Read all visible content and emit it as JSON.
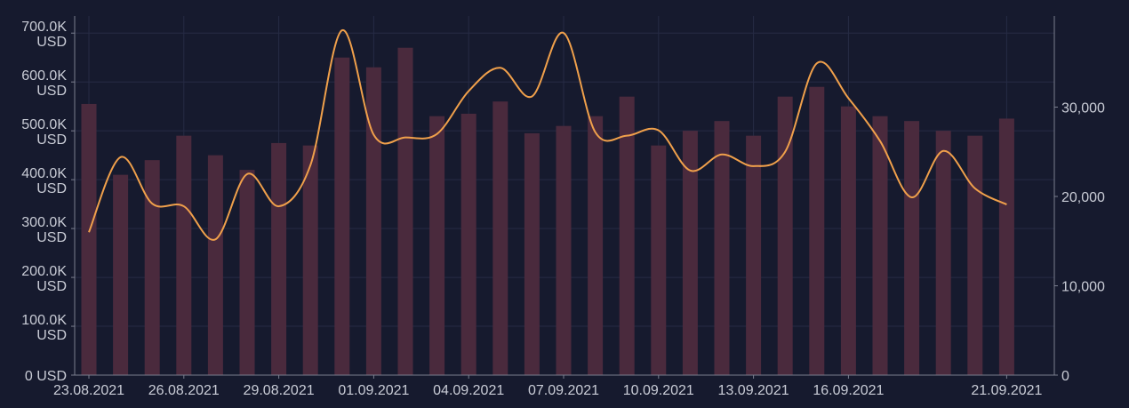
{
  "chart_data": {
    "type": "bar",
    "colors": {
      "background": "#161a2e",
      "bars": "#4a2a3d",
      "line": "#f0a04b",
      "grid": "#262b44",
      "text": "#c9ccd6"
    },
    "grid": true,
    "categories": [
      "23.08.2021",
      "24.08.2021",
      "25.08.2021",
      "26.08.2021",
      "27.08.2021",
      "28.08.2021",
      "29.08.2021",
      "30.08.2021",
      "31.08.2021",
      "01.09.2021",
      "02.09.2021",
      "03.09.2021",
      "04.09.2021",
      "05.09.2021",
      "06.09.2021",
      "07.09.2021",
      "08.09.2021",
      "09.09.2021",
      "10.09.2021",
      "11.09.2021",
      "12.09.2021",
      "13.09.2021",
      "14.09.2021",
      "15.09.2021",
      "16.09.2021",
      "17.09.2021",
      "18.09.2021",
      "19.09.2021",
      "20.09.2021",
      "21.09.2021"
    ],
    "x_tick_labels": [
      "23.08.2021",
      "26.08.2021",
      "29.08.2021",
      "01.09.2021",
      "04.09.2021",
      "07.09.2021",
      "10.09.2021",
      "13.09.2021",
      "16.09.2021",
      "21.09.2021"
    ],
    "x_tick_indices": [
      0,
      3,
      6,
      9,
      12,
      15,
      18,
      21,
      24,
      29
    ],
    "series": [
      {
        "axis": "left",
        "render": "bar",
        "values": [
          555000,
          410000,
          440000,
          490000,
          450000,
          420000,
          475000,
          470000,
          650000,
          630000,
          670000,
          530000,
          535000,
          560000,
          495000,
          510000,
          530000,
          570000,
          470000,
          500000,
          520000,
          490000,
          570000,
          590000,
          550000,
          530000,
          520000,
          500000,
          490000,
          525000
        ]
      },
      {
        "axis": "right",
        "render": "line",
        "values": [
          16000,
          24400,
          19200,
          18900,
          15200,
          22500,
          18900,
          23500,
          38600,
          26900,
          26600,
          27000,
          31800,
          34400,
          31200,
          38300,
          27200,
          26800,
          27400,
          22900,
          24700,
          23400,
          25000,
          34900,
          31000,
          26200,
          19900,
          25100,
          20900,
          19100
        ]
      }
    ],
    "left_axis": {
      "ylim": [
        0,
        735000
      ],
      "ticks": [
        0,
        100000,
        200000,
        300000,
        400000,
        500000,
        600000,
        700000
      ],
      "tick_labels": [
        [
          "0 USD"
        ],
        [
          "100.0K",
          "USD"
        ],
        [
          "200.0K",
          "USD"
        ],
        [
          "300.0K",
          "USD"
        ],
        [
          "400.0K",
          "USD"
        ],
        [
          "500.0K",
          "USD"
        ],
        [
          "600.0K",
          "USD"
        ],
        [
          "700.0K",
          "USD"
        ]
      ]
    },
    "right_axis": {
      "ylim": [
        0,
        40200
      ],
      "ticks": [
        0,
        10000,
        20000,
        30000
      ],
      "tick_labels": [
        "0",
        "10,000",
        "20,000",
        "30,000"
      ]
    }
  }
}
